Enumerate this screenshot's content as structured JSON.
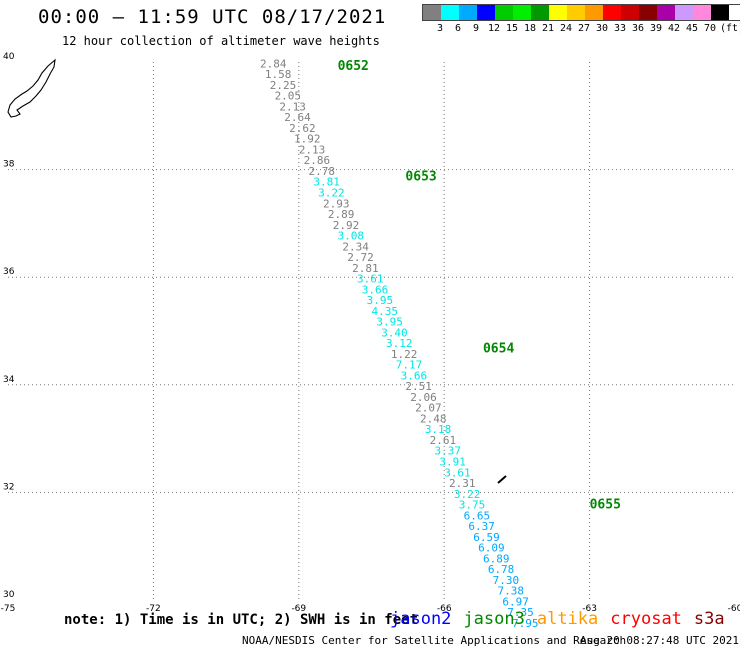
{
  "header": {
    "title": "00:00 – 11:59 UTC 08/17/2021",
    "subtitle": "12 hour collection of altimeter wave heights"
  },
  "legend": {
    "unit_label": "(ft)",
    "bins": [
      {
        "label": "3",
        "color": "#808080"
      },
      {
        "label": "6",
        "color": "#00ffff"
      },
      {
        "label": "9",
        "color": "#00aaff"
      },
      {
        "label": "12",
        "color": "#0000ff"
      },
      {
        "label": "15",
        "color": "#00cc00"
      },
      {
        "label": "18",
        "color": "#00ee00"
      },
      {
        "label": "21",
        "color": "#009900"
      },
      {
        "label": "24",
        "color": "#ffff00"
      },
      {
        "label": "27",
        "color": "#ffcc00"
      },
      {
        "label": "30",
        "color": "#ff9900"
      },
      {
        "label": "33",
        "color": "#ff0000"
      },
      {
        "label": "36",
        "color": "#cc0000"
      },
      {
        "label": "39",
        "color": "#880000"
      },
      {
        "label": "42",
        "color": "#aa00aa"
      },
      {
        "label": "45",
        "color": "#cc99ff"
      },
      {
        "label": "70",
        "color": "#ff88dd"
      },
      {
        "label": "",
        "color": "#000000"
      }
    ]
  },
  "axes": {
    "x_ticks": [
      "-75",
      "-72",
      "-69",
      "-66",
      "-63",
      "-60"
    ],
    "y_ticks": [
      "30",
      "32",
      "34",
      "36",
      "38",
      "40"
    ],
    "lon_range": [
      -75,
      -60
    ],
    "lat_range": [
      30,
      40
    ]
  },
  "chart_data": {
    "type": "scatter",
    "title": "12 hour collection of altimeter wave heights",
    "xlim": [
      -75,
      -60
    ],
    "ylim": [
      30,
      40
    ],
    "grid": true,
    "track": [
      {
        "lon": -69.8,
        "lat": 39.9,
        "swh": "2.84",
        "color": "#808080"
      },
      {
        "lon": -69.7,
        "lat": 39.7,
        "swh": "1.58",
        "color": "#808080"
      },
      {
        "lon": -69.6,
        "lat": 39.5,
        "swh": "2.25",
        "color": "#808080"
      },
      {
        "lon": -69.5,
        "lat": 39.3,
        "swh": "2.05",
        "color": "#808080"
      },
      {
        "lon": -69.4,
        "lat": 39.1,
        "swh": "2.13",
        "color": "#808080"
      },
      {
        "lon": -69.3,
        "lat": 38.9,
        "swh": "2.64",
        "color": "#808080"
      },
      {
        "lon": -69.2,
        "lat": 38.7,
        "swh": "2.62",
        "color": "#808080"
      },
      {
        "lon": -69.1,
        "lat": 38.5,
        "swh": "1.92",
        "color": "#808080"
      },
      {
        "lon": -69.0,
        "lat": 38.3,
        "swh": "2.13",
        "color": "#808080"
      },
      {
        "lon": -68.9,
        "lat": 38.1,
        "swh": "2.86",
        "color": "#808080"
      },
      {
        "lon": -68.8,
        "lat": 37.9,
        "swh": "2.78",
        "color": "#808080"
      },
      {
        "lon": -68.7,
        "lat": 37.7,
        "swh": "3.81",
        "color": "#00e5e5"
      },
      {
        "lon": -68.6,
        "lat": 37.5,
        "swh": "3.22",
        "color": "#00e5e5"
      },
      {
        "lon": -68.5,
        "lat": 37.3,
        "swh": "2.93",
        "color": "#808080"
      },
      {
        "lon": -68.4,
        "lat": 37.1,
        "swh": "2.89",
        "color": "#808080"
      },
      {
        "lon": -68.3,
        "lat": 36.9,
        "swh": "2.92",
        "color": "#808080"
      },
      {
        "lon": -68.2,
        "lat": 36.7,
        "swh": "3.08",
        "color": "#00e5e5"
      },
      {
        "lon": -68.1,
        "lat": 36.5,
        "swh": "2.34",
        "color": "#808080"
      },
      {
        "lon": -68.0,
        "lat": 36.3,
        "swh": "2.72",
        "color": "#808080"
      },
      {
        "lon": -67.9,
        "lat": 36.1,
        "swh": "2.81",
        "color": "#808080"
      },
      {
        "lon": -67.8,
        "lat": 35.9,
        "swh": "3.61",
        "color": "#00e5e5"
      },
      {
        "lon": -67.7,
        "lat": 35.7,
        "swh": "3.66",
        "color": "#00e5e5"
      },
      {
        "lon": -67.6,
        "lat": 35.5,
        "swh": "3.95",
        "color": "#00e5e5"
      },
      {
        "lon": -67.5,
        "lat": 35.3,
        "swh": "4.35",
        "color": "#00e5e5"
      },
      {
        "lon": -67.4,
        "lat": 35.1,
        "swh": "3.95",
        "color": "#00e5e5"
      },
      {
        "lon": -67.3,
        "lat": 34.9,
        "swh": "3.40",
        "color": "#00e5e5"
      },
      {
        "lon": -67.2,
        "lat": 34.7,
        "swh": "3.12",
        "color": "#00e5e5"
      },
      {
        "lon": -67.1,
        "lat": 34.5,
        "swh": "1.22",
        "color": "#808080"
      },
      {
        "lon": -67.0,
        "lat": 34.3,
        "swh": "7.17",
        "color": "#00e5e5"
      },
      {
        "lon": -66.9,
        "lat": 34.1,
        "swh": "3.66",
        "color": "#00e5e5"
      },
      {
        "lon": -66.8,
        "lat": 33.9,
        "swh": "2.51",
        "color": "#808080"
      },
      {
        "lon": -66.7,
        "lat": 33.7,
        "swh": "2.06",
        "color": "#808080"
      },
      {
        "lon": -66.6,
        "lat": 33.5,
        "swh": "2.07",
        "color": "#808080"
      },
      {
        "lon": -66.5,
        "lat": 33.3,
        "swh": "2.48",
        "color": "#808080"
      },
      {
        "lon": -66.4,
        "lat": 33.1,
        "swh": "3.18",
        "color": "#00e5e5"
      },
      {
        "lon": -66.3,
        "lat": 32.9,
        "swh": "2.61",
        "color": "#808080"
      },
      {
        "lon": -66.2,
        "lat": 32.7,
        "swh": "3.37",
        "color": "#00e5e5"
      },
      {
        "lon": -66.1,
        "lat": 32.5,
        "swh": "3.91",
        "color": "#00e5e5"
      },
      {
        "lon": -66.0,
        "lat": 32.3,
        "swh": "3.61",
        "color": "#00e5e5"
      },
      {
        "lon": -65.9,
        "lat": 32.1,
        "swh": "2.31",
        "color": "#808080"
      },
      {
        "lon": -65.8,
        "lat": 31.9,
        "swh": "3.22",
        "color": "#00e5e5"
      },
      {
        "lon": -65.7,
        "lat": 31.7,
        "swh": "3.75",
        "color": "#00e5e5"
      },
      {
        "lon": -65.6,
        "lat": 31.5,
        "swh": "6.65",
        "color": "#00a8ff"
      },
      {
        "lon": -65.5,
        "lat": 31.3,
        "swh": "6.37",
        "color": "#00a8ff"
      },
      {
        "lon": -65.4,
        "lat": 31.1,
        "swh": "6.59",
        "color": "#00a8ff"
      },
      {
        "lon": -65.3,
        "lat": 30.9,
        "swh": "6.09",
        "color": "#00a8ff"
      },
      {
        "lon": -65.2,
        "lat": 30.7,
        "swh": "6.89",
        "color": "#00a8ff"
      },
      {
        "lon": -65.1,
        "lat": 30.5,
        "swh": "6.78",
        "color": "#00a8ff"
      },
      {
        "lon": -65.0,
        "lat": 30.3,
        "swh": "7.30",
        "color": "#00a8ff"
      },
      {
        "lon": -64.9,
        "lat": 30.1,
        "swh": "7.38",
        "color": "#00a8ff"
      },
      {
        "lon": -64.8,
        "lat": 29.9,
        "swh": "6.97",
        "color": "#00a8ff"
      },
      {
        "lon": -64.7,
        "lat": 29.7,
        "swh": "7.35",
        "color": "#00a8ff"
      },
      {
        "lon": -64.6,
        "lat": 29.5,
        "swh": "7.95",
        "color": "#00a8ff"
      }
    ],
    "time_labels": [
      {
        "lon": -68.2,
        "lat": 39.85,
        "text": "0652"
      },
      {
        "lon": -66.8,
        "lat": 37.8,
        "text": "0653"
      },
      {
        "lon": -65.2,
        "lat": 34.6,
        "text": "0654"
      },
      {
        "lon": -63.0,
        "lat": 31.7,
        "text": "0655"
      }
    ]
  },
  "footer": {
    "note": "note: 1) Time is in UTC; 2) SWH is in feet",
    "satellites": [
      {
        "name": "jason2",
        "color": "#0000ff"
      },
      {
        "name": "jason3",
        "color": "#008800"
      },
      {
        "name": "altika",
        "color": "#ff9900"
      },
      {
        "name": "cryosat",
        "color": "#ff0000"
      },
      {
        "name": "s3a",
        "color": "#880000"
      }
    ],
    "credit": "NOAA/NESDIS Center for Satellite Applications and Research",
    "timestamp": "Aug 20 08:27:48 UTC 2021"
  }
}
